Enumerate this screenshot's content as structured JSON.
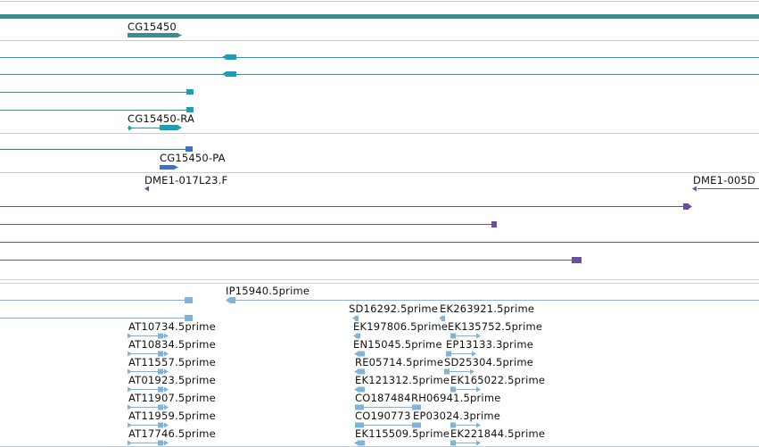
{
  "colors": {
    "gene": "#3d8c8c",
    "transcript": "#1a9fb8",
    "protein": "#3a72c9",
    "est_clone": "#6b4f9e",
    "est_read": "#7fb3d9",
    "separator": "#c8cdd2"
  },
  "tracks": {
    "gene": {
      "label": "CG15450"
    },
    "transcript": {
      "label": "CG15450-RA"
    },
    "protein": {
      "label": "CG15450-PA"
    },
    "cdna_clones": {
      "labels": [
        "DME1-017L23.F",
        "DME1-005D"
      ]
    },
    "est_reads": {
      "labels": [
        "IP15940.5prime",
        "SD16292.5prime",
        "EK263921.5prime",
        "AT10734.5prime",
        "EK197806.5prime",
        "EK135752.5prime",
        "AT10834.5prime",
        "EN15045.5prime",
        "EP13133.3prime",
        "AT11557.5prime",
        "RE05714.5prime",
        "SD25304.5prime",
        "AT01923.5prime",
        "EK121312.5prime",
        "EK165022.5prime",
        "AT11907.5prime",
        "CO187484",
        "RH06941.5prime",
        "AT11959.5prime",
        "CO190773",
        "EP03024.3prime",
        "AT17746.5prime",
        "EK115509.5prime",
        "EK221844.5prime"
      ]
    }
  }
}
